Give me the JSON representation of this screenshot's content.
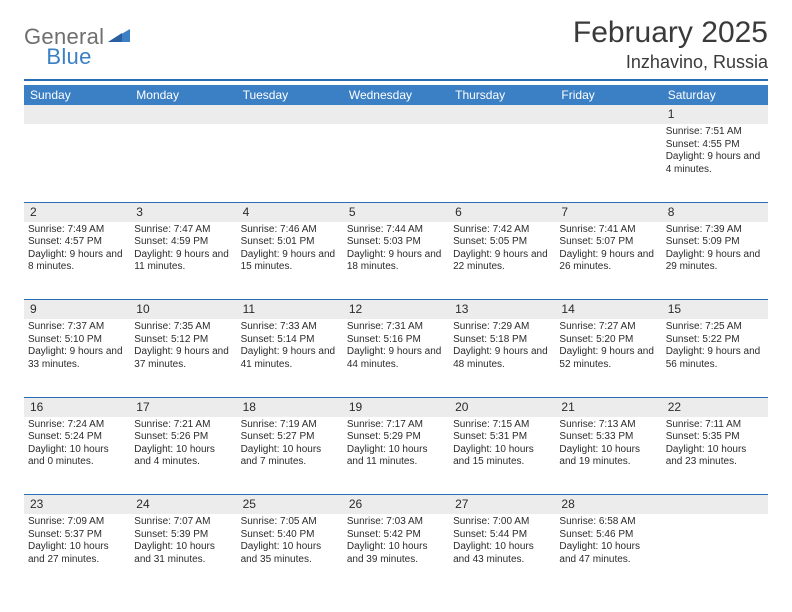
{
  "logo": {
    "word1": "General",
    "word2": "Blue"
  },
  "title": "February 2025",
  "subtitle": "Inzhavino, Russia",
  "header_bg": "#3b7fc4",
  "rule_color": "#2a6db5",
  "daynum_bg": "#ececec",
  "columns": [
    "Sunday",
    "Monday",
    "Tuesday",
    "Wednesday",
    "Thursday",
    "Friday",
    "Saturday"
  ],
  "weeks": [
    [
      null,
      null,
      null,
      null,
      null,
      null,
      {
        "n": "1",
        "sr": "Sunrise: 7:51 AM",
        "ss": "Sunset: 4:55 PM",
        "dl": "Daylight: 9 hours and 4 minutes."
      }
    ],
    [
      {
        "n": "2",
        "sr": "Sunrise: 7:49 AM",
        "ss": "Sunset: 4:57 PM",
        "dl": "Daylight: 9 hours and 8 minutes."
      },
      {
        "n": "3",
        "sr": "Sunrise: 7:47 AM",
        "ss": "Sunset: 4:59 PM",
        "dl": "Daylight: 9 hours and 11 minutes."
      },
      {
        "n": "4",
        "sr": "Sunrise: 7:46 AM",
        "ss": "Sunset: 5:01 PM",
        "dl": "Daylight: 9 hours and 15 minutes."
      },
      {
        "n": "5",
        "sr": "Sunrise: 7:44 AM",
        "ss": "Sunset: 5:03 PM",
        "dl": "Daylight: 9 hours and 18 minutes."
      },
      {
        "n": "6",
        "sr": "Sunrise: 7:42 AM",
        "ss": "Sunset: 5:05 PM",
        "dl": "Daylight: 9 hours and 22 minutes."
      },
      {
        "n": "7",
        "sr": "Sunrise: 7:41 AM",
        "ss": "Sunset: 5:07 PM",
        "dl": "Daylight: 9 hours and 26 minutes."
      },
      {
        "n": "8",
        "sr": "Sunrise: 7:39 AM",
        "ss": "Sunset: 5:09 PM",
        "dl": "Daylight: 9 hours and 29 minutes."
      }
    ],
    [
      {
        "n": "9",
        "sr": "Sunrise: 7:37 AM",
        "ss": "Sunset: 5:10 PM",
        "dl": "Daylight: 9 hours and 33 minutes."
      },
      {
        "n": "10",
        "sr": "Sunrise: 7:35 AM",
        "ss": "Sunset: 5:12 PM",
        "dl": "Daylight: 9 hours and 37 minutes."
      },
      {
        "n": "11",
        "sr": "Sunrise: 7:33 AM",
        "ss": "Sunset: 5:14 PM",
        "dl": "Daylight: 9 hours and 41 minutes."
      },
      {
        "n": "12",
        "sr": "Sunrise: 7:31 AM",
        "ss": "Sunset: 5:16 PM",
        "dl": "Daylight: 9 hours and 44 minutes."
      },
      {
        "n": "13",
        "sr": "Sunrise: 7:29 AM",
        "ss": "Sunset: 5:18 PM",
        "dl": "Daylight: 9 hours and 48 minutes."
      },
      {
        "n": "14",
        "sr": "Sunrise: 7:27 AM",
        "ss": "Sunset: 5:20 PM",
        "dl": "Daylight: 9 hours and 52 minutes."
      },
      {
        "n": "15",
        "sr": "Sunrise: 7:25 AM",
        "ss": "Sunset: 5:22 PM",
        "dl": "Daylight: 9 hours and 56 minutes."
      }
    ],
    [
      {
        "n": "16",
        "sr": "Sunrise: 7:24 AM",
        "ss": "Sunset: 5:24 PM",
        "dl": "Daylight: 10 hours and 0 minutes."
      },
      {
        "n": "17",
        "sr": "Sunrise: 7:21 AM",
        "ss": "Sunset: 5:26 PM",
        "dl": "Daylight: 10 hours and 4 minutes."
      },
      {
        "n": "18",
        "sr": "Sunrise: 7:19 AM",
        "ss": "Sunset: 5:27 PM",
        "dl": "Daylight: 10 hours and 7 minutes."
      },
      {
        "n": "19",
        "sr": "Sunrise: 7:17 AM",
        "ss": "Sunset: 5:29 PM",
        "dl": "Daylight: 10 hours and 11 minutes."
      },
      {
        "n": "20",
        "sr": "Sunrise: 7:15 AM",
        "ss": "Sunset: 5:31 PM",
        "dl": "Daylight: 10 hours and 15 minutes."
      },
      {
        "n": "21",
        "sr": "Sunrise: 7:13 AM",
        "ss": "Sunset: 5:33 PM",
        "dl": "Daylight: 10 hours and 19 minutes."
      },
      {
        "n": "22",
        "sr": "Sunrise: 7:11 AM",
        "ss": "Sunset: 5:35 PM",
        "dl": "Daylight: 10 hours and 23 minutes."
      }
    ],
    [
      {
        "n": "23",
        "sr": "Sunrise: 7:09 AM",
        "ss": "Sunset: 5:37 PM",
        "dl": "Daylight: 10 hours and 27 minutes."
      },
      {
        "n": "24",
        "sr": "Sunrise: 7:07 AM",
        "ss": "Sunset: 5:39 PM",
        "dl": "Daylight: 10 hours and 31 minutes."
      },
      {
        "n": "25",
        "sr": "Sunrise: 7:05 AM",
        "ss": "Sunset: 5:40 PM",
        "dl": "Daylight: 10 hours and 35 minutes."
      },
      {
        "n": "26",
        "sr": "Sunrise: 7:03 AM",
        "ss": "Sunset: 5:42 PM",
        "dl": "Daylight: 10 hours and 39 minutes."
      },
      {
        "n": "27",
        "sr": "Sunrise: 7:00 AM",
        "ss": "Sunset: 5:44 PM",
        "dl": "Daylight: 10 hours and 43 minutes."
      },
      {
        "n": "28",
        "sr": "Sunrise: 6:58 AM",
        "ss": "Sunset: 5:46 PM",
        "dl": "Daylight: 10 hours and 47 minutes."
      },
      null
    ]
  ]
}
